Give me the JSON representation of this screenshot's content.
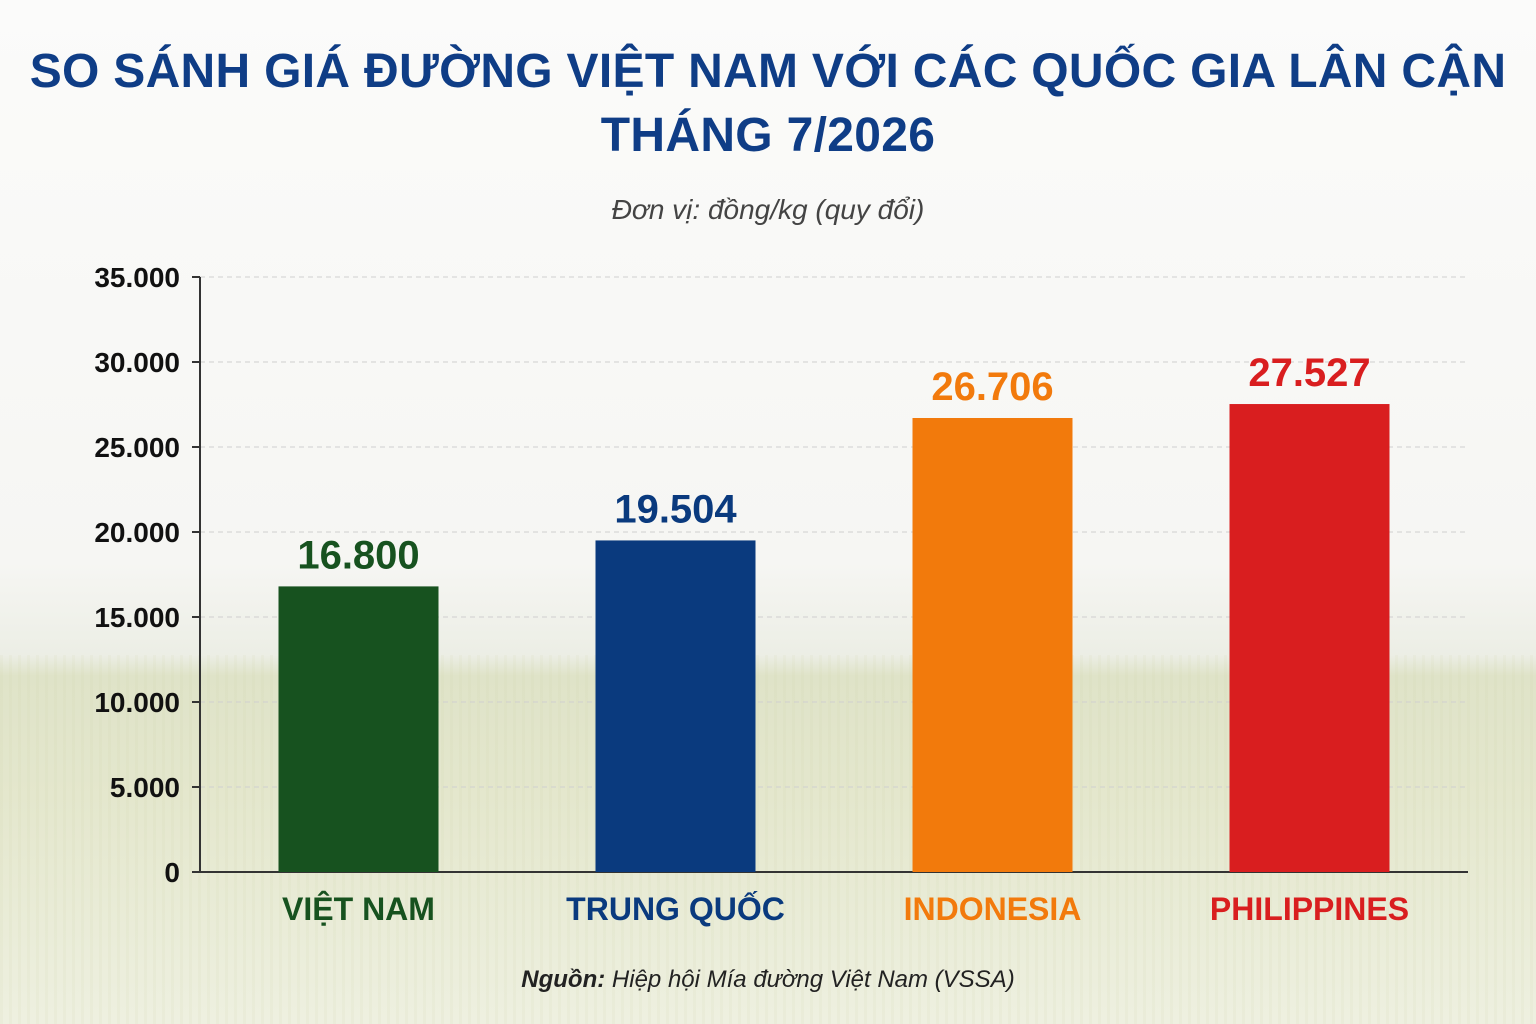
{
  "title_line1": "SO SÁNH GIÁ ĐƯỜNG VIỆT NAM VỚI CÁC QUỐC GIA LÂN CẬN",
  "title_line2": "THÁNG 7/2026",
  "subtitle": "Đơn vị: đồng/kg (quy đổi)",
  "source_label": "Nguồn:",
  "source_text": " Hiệp hội Mía đường Việt Nam (VSSA)",
  "chart_data": {
    "type": "bar",
    "title": "SO SÁNH GIÁ ĐƯỜNG VIỆT NAM VỚI CÁC QUỐC GIA LÂN CẬN THÁNG 7/2026",
    "subtitle": "Đơn vị: đồng/kg (quy đổi)",
    "categories": [
      "VIỆT NAM",
      "TRUNG QUỐC",
      "INDONESIA",
      "PHILIPPINES"
    ],
    "values": [
      16800,
      19504,
      26706,
      27527
    ],
    "value_labels": [
      "16.800",
      "19.504",
      "26.706",
      "27.527"
    ],
    "colors": [
      "#17521f",
      "#0a3a7e",
      "#f27a0c",
      "#d91e1f"
    ],
    "ylim": [
      0,
      35000
    ],
    "yticks": [
      0,
      5000,
      10000,
      15000,
      20000,
      25000,
      30000,
      35000
    ],
    "ytick_labels": [
      "0",
      "5.000",
      "10.000",
      "15.000",
      "20.000",
      "25.000",
      "30.000",
      "35.000"
    ],
    "grid": true,
    "xlabel": "",
    "ylabel": ""
  }
}
